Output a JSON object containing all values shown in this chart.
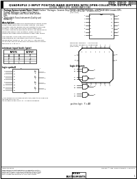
{
  "background_color": "#f0f0f0",
  "text_color": "#000000",
  "title_line1": "SN5438, SN54L538, SN54538",
  "title_line2": "SN7438, SN74L538, SN74538",
  "main_title": "QUADRUPLE 2-INPUT POSITIVE-NAND BUFFERS WITH OPEN-COLLECTOR OUTPUTS",
  "sub_title": "SDLS069 - MARCH 1974 - REVISED MARCH 1988",
  "bullet1": "Package Options Include Plastic \"Small Outline\" Packages, Ceramic Chip Carriers and Flat Packages, and Plastic and Ceramic DIPs",
  "bullet2": "Dependable Texas Instruments Quality and Reliability",
  "desc_title": "description",
  "desc_body": "These devices contain four independent 2-input NAND buffer gates with open-collector outputs. The open-collector outputs require pull-up resistors to perform correctly. They may be connected to other open-collector outputs to implement active-low wired-OR or wired-high wired-AND functions. Open collector devices are often used to generate high logic levels.\n\nThe SN5438, SN54LS38, and SN54S38 are characterized for operation over the full military temperature range of -55°C to 125°C. The SN7438, SN74LS38, and SN74S38 are characterized for operation from 0°C to 70°C.",
  "tt_title": "minimum input levels (gate)",
  "tt_headers": [
    "INPUTS",
    "OUTPUT"
  ],
  "tt_subhdrs": [
    "A",
    "B",
    "Y"
  ],
  "tt_rows": [
    [
      "H",
      "H",
      "L"
    ],
    [
      "L",
      "X",
      "H"
    ],
    [
      "X",
      "L",
      "H"
    ]
  ],
  "ls_title": "logic symbol†",
  "ld_title": "logic diagram",
  "pos_logic": "positive logic:  Y = AB",
  "footnote1": "† This symbol is in accordance with ANSI/IEEE Std 91-1984 and",
  "footnote2": "IEC Publication 617-12.",
  "footnote3": "Pin numbers shown are for D, J, N, and W packages.",
  "pkg1_label": "SN5438, SN54LS38, SN54S38 ... J OR W PACKAGE",
  "pkg1_sub": "SN7438, SN74LS38 ... D OR N PACKAGE",
  "pkg1_note": "(TOP VIEW)",
  "pkg2_label": "SN54LS38, SN54S38 ... FK PACKAGE",
  "pkg2_sub": "SN74LS38, SN74S38 ... FN PACKAGE",
  "pkg2_note": "(TOP VIEW)",
  "ti_logo": "TEXAS\nINSTRUMENTS",
  "copyright": "Copyright © 1988, Texas Instruments Incorporated",
  "page": "1",
  "dip_left_pins": [
    "1A",
    "1B",
    "1Y",
    "2A",
    "2B",
    "2Y",
    "GND"
  ],
  "dip_right_pins": [
    "VCC",
    "4Y",
    "4B",
    "4A",
    "3Y",
    "3B",
    "3A"
  ],
  "dip_left_nums": [
    "1",
    "2",
    "3",
    "4",
    "5",
    "6",
    "7"
  ],
  "dip_right_nums": [
    "14",
    "13",
    "12",
    "11",
    "10",
    "9",
    "8"
  ],
  "plcc_pins_top": [
    "NC",
    "4B",
    "4A",
    "NC",
    "3Y",
    "3B",
    "3A"
  ],
  "plcc_pins_right": [
    "VCC",
    "NC"
  ],
  "plcc_pins_bottom": [
    "GND",
    "2Y",
    "2B",
    "2A",
    "NC",
    "1Y",
    "1B"
  ],
  "plcc_pins_left": [
    "1A",
    "NC"
  ],
  "gate_inputs": [
    [
      "1A",
      "1B"
    ],
    [
      "2A",
      "2B"
    ],
    [
      "3A",
      "3B"
    ],
    [
      "4A",
      "4B"
    ]
  ],
  "gate_outputs": [
    "1Y",
    "2Y",
    "3Y",
    "4Y"
  ]
}
